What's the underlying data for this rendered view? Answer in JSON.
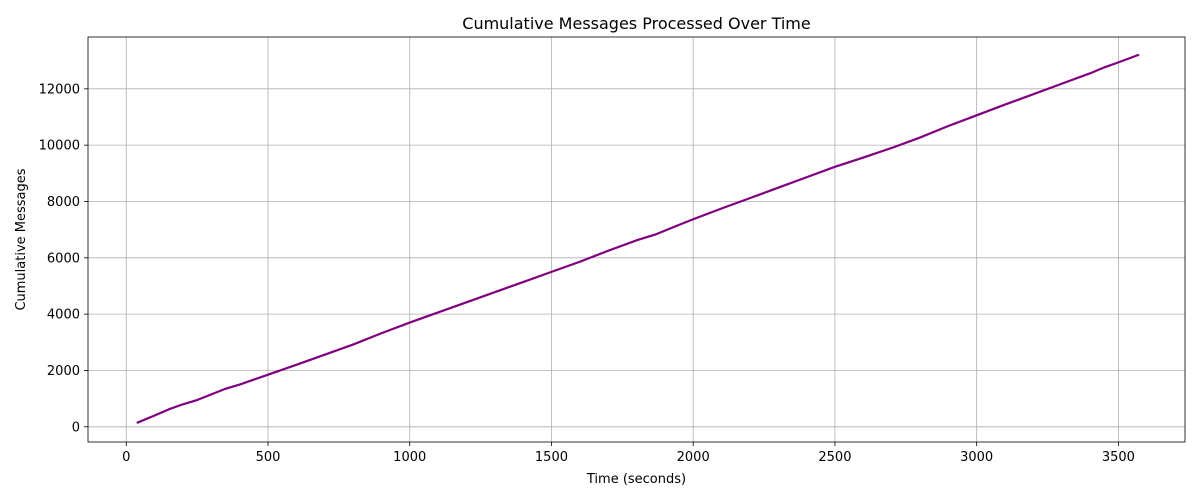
{
  "chart_data": {
    "type": "line",
    "title": "Cumulative Messages Processed Over Time",
    "xlabel": "Time (seconds)",
    "ylabel": "Cumulative Messages",
    "xlim": [
      -135,
      3735
    ],
    "ylim": [
      -540,
      13840
    ],
    "xticks": [
      0,
      500,
      1000,
      1500,
      2000,
      2500,
      3000,
      3500
    ],
    "yticks": [
      0,
      2000,
      4000,
      6000,
      8000,
      10000,
      12000
    ],
    "grid": true,
    "legend": "none",
    "series": [
      {
        "color": "#800080",
        "x": [
          40,
          100,
          150,
          200,
          250,
          300,
          350,
          400,
          500,
          600,
          700,
          800,
          900,
          1000,
          1100,
          1200,
          1300,
          1400,
          1500,
          1600,
          1700,
          1800,
          1870,
          1950,
          2000,
          2100,
          2200,
          2300,
          2400,
          2500,
          2600,
          2700,
          2800,
          2900,
          3000,
          3100,
          3200,
          3300,
          3400,
          3450,
          3500,
          3570
        ],
        "y": [
          150,
          400,
          620,
          800,
          950,
          1150,
          1350,
          1500,
          1850,
          2200,
          2560,
          2920,
          3320,
          3700,
          4060,
          4420,
          4780,
          5140,
          5500,
          5860,
          6250,
          6620,
          6840,
          7170,
          7370,
          7750,
          8120,
          8490,
          8860,
          9230,
          9560,
          9900,
          10270,
          10680,
          11060,
          11440,
          11810,
          12180,
          12550,
          12760,
          12940,
          13200
        ]
      }
    ]
  }
}
